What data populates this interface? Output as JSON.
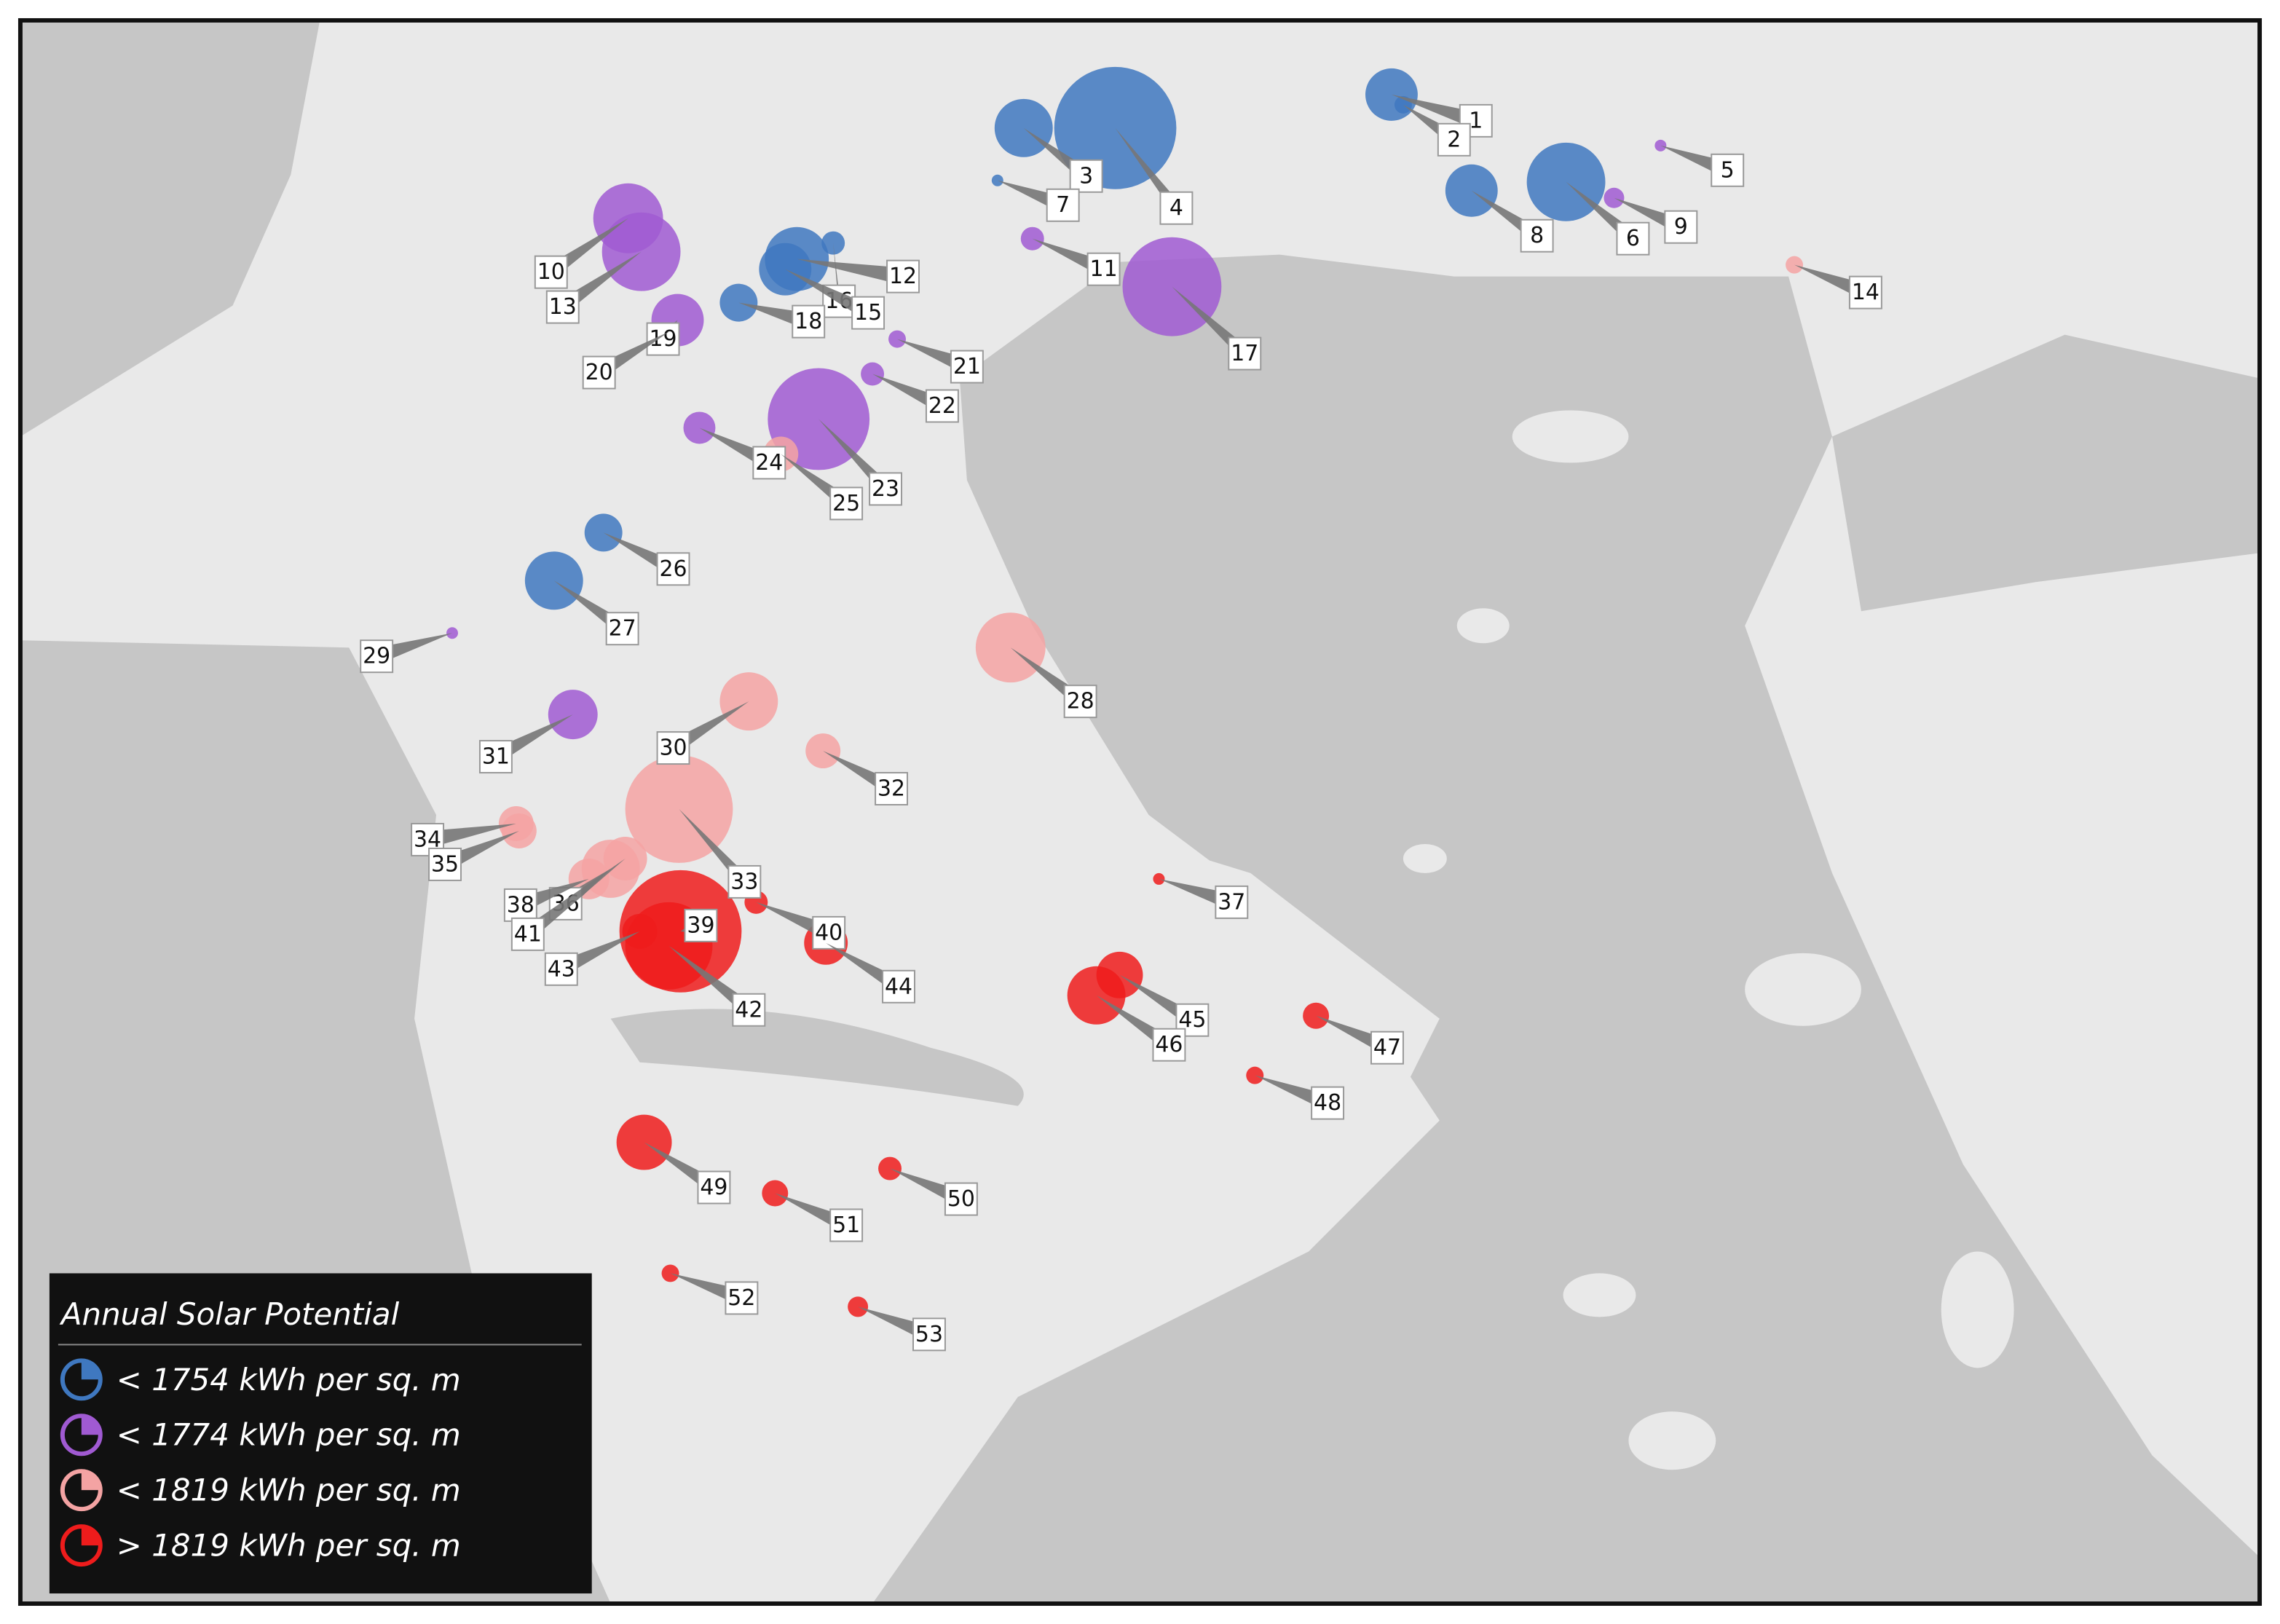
{
  "legend": {
    "title": "Annual Solar Potential",
    "items": [
      {
        "label": "< 1754 kWh per sq. m",
        "color": "#3f78c0",
        "markers": [
          "1",
          "2",
          "3",
          "4",
          "7",
          "8",
          "6",
          "12",
          "16",
          "15",
          "18",
          "26",
          "27"
        ]
      },
      {
        "label": "< 1774 kWh per sq. m",
        "color": "#a05ad2",
        "markers": [
          "5",
          "9",
          "10",
          "13",
          "11",
          "17",
          "19",
          "20",
          "21",
          "22",
          "23",
          "24",
          "29",
          "31"
        ]
      },
      {
        "label": "< 1819 kWh per sq. m",
        "color": "#f4a3a3",
        "markers": [
          "14",
          "25",
          "28",
          "30",
          "32",
          "33",
          "34",
          "35",
          "36",
          "38",
          "41"
        ]
      },
      {
        "label": "> 1819 kWh per sq. m",
        "color": "#ee1c1c",
        "markers": [
          "37",
          "39",
          "40",
          "42",
          "43",
          "44",
          "45",
          "46",
          "47",
          "48",
          "49",
          "50",
          "51",
          "52",
          "53"
        ]
      }
    ]
  }
}
